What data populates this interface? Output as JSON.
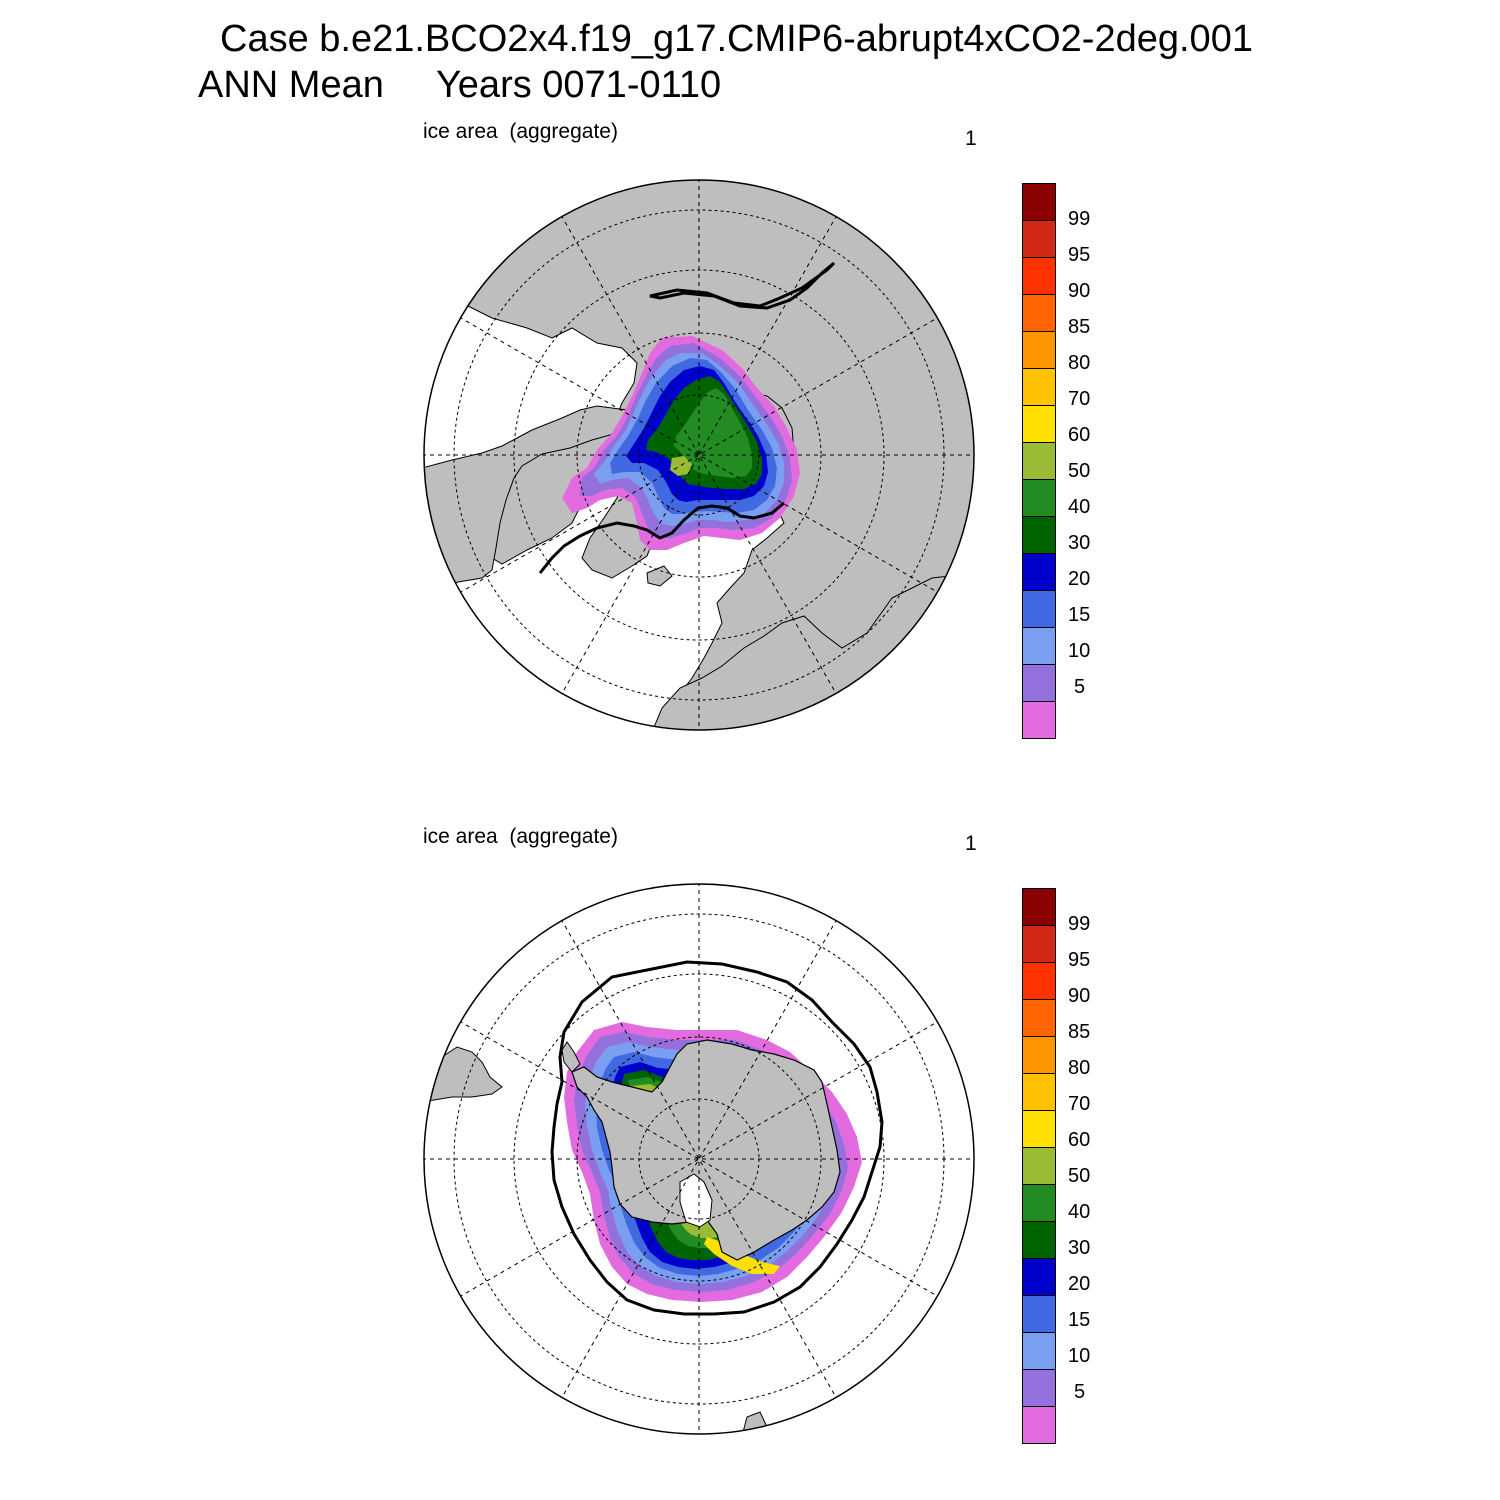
{
  "title": {
    "line1": "Case b.e21.BCO2x4.f19_g17.CMIP6-abrupt4xCO2-2deg.001",
    "line2": "ANN Mean     Years 0071-0110"
  },
  "panels": [
    {
      "name": "north",
      "variable_label": "ice area  (aggregate)",
      "units_label": "1",
      "hemisphere": "Northern"
    },
    {
      "name": "south",
      "variable_label": "ice area  (aggregate)",
      "units_label": "1",
      "hemisphere": "Southern"
    }
  ],
  "colorbar": {
    "levels": [
      "5",
      "10",
      "15",
      "20",
      "30",
      "40",
      "50",
      "60",
      "70",
      "80",
      "85",
      "90",
      "95",
      "99"
    ],
    "colors": [
      "#e36be0",
      "#9370db",
      "#7b9ff0",
      "#4169e1",
      "#0000cd",
      "#006400",
      "#228b22",
      "#9abc34",
      "#ffe000",
      "#ffc200",
      "#ff9600",
      "#ff6400",
      "#ff3200",
      "#d22814",
      "#8b0000"
    ]
  },
  "map_colors": {
    "land": "#bebebe",
    "ocean": "#ffffff",
    "grid": "#000000"
  }
}
